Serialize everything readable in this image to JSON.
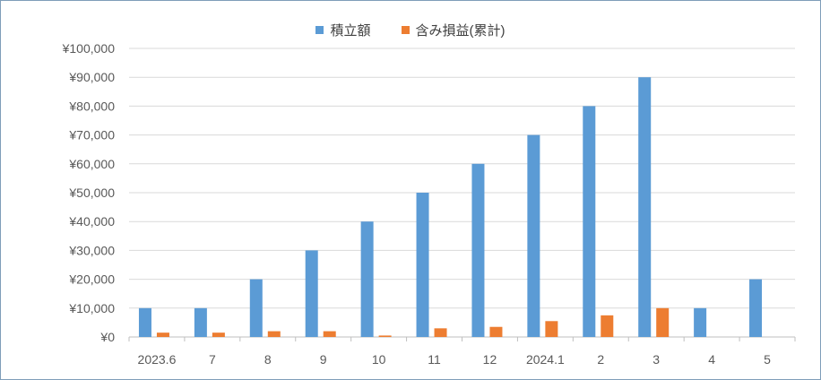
{
  "chart_data": {
    "type": "bar",
    "categories": [
      "2023.6",
      "7",
      "8",
      "9",
      "10",
      "11",
      "12",
      "2024.1",
      "2",
      "3",
      "4",
      "5"
    ],
    "series": [
      {
        "name": "積立額",
        "color": "#5b9bd5",
        "values": [
          10000,
          10000,
          20000,
          30000,
          40000,
          50000,
          60000,
          70000,
          80000,
          90000,
          10000,
          20000
        ]
      },
      {
        "name": "含み損益(累計)",
        "color": "#ed7d31",
        "values": [
          1500,
          1500,
          2000,
          2000,
          500,
          3000,
          3500,
          5500,
          7500,
          10000,
          0,
          0
        ]
      }
    ],
    "ylim": [
      0,
      100000
    ],
    "y_ticks": [
      "¥0",
      "¥10,000",
      "¥20,000",
      "¥30,000",
      "¥40,000",
      "¥50,000",
      "¥60,000",
      "¥70,000",
      "¥80,000",
      "¥90,000",
      "¥100,000"
    ],
    "grid": true,
    "legend_position": "top",
    "title": "",
    "xlabel": "",
    "ylabel": ""
  }
}
